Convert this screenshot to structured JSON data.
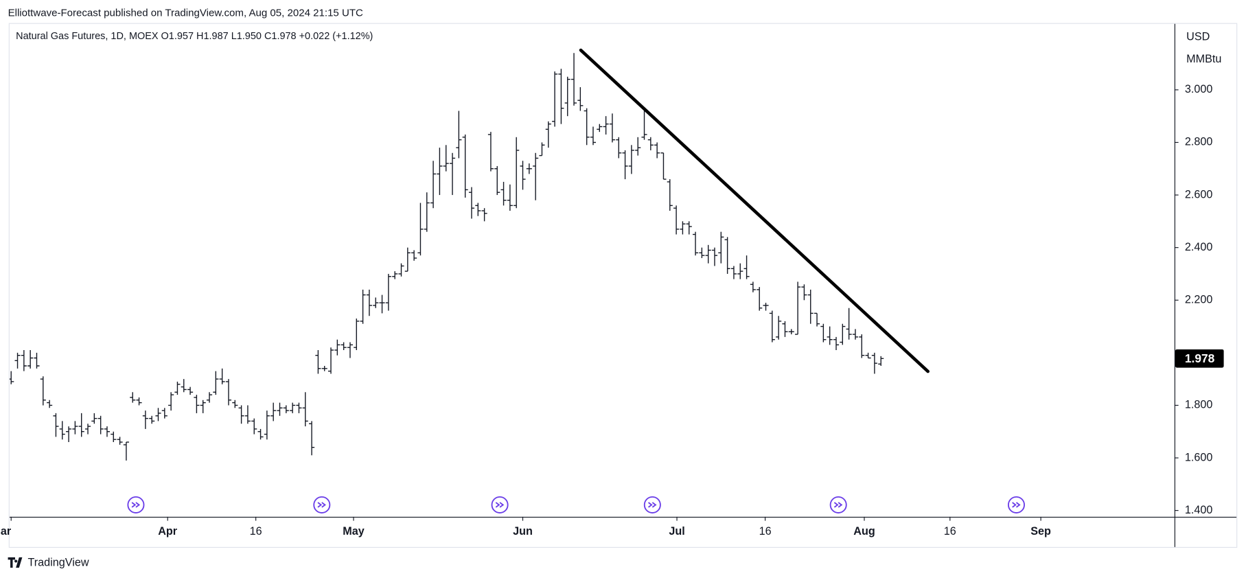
{
  "chart_data": {
    "type": "ohlc",
    "publisher": "Elliottwave-Forecast published on TradingView.com, Aug 05, 2024 21:15 UTC",
    "title": "Natural Gas Futures, 1D, MOEX  O1.957  H1.987  L1.950  C1.978  +0.022 (+1.12%)",
    "currency": "USD",
    "unit": "MMBtu",
    "brand": "TradingView",
    "color": "#131722",
    "ylim": [
      1.376,
      3.251
    ],
    "yticks": [
      {
        "value": 3,
        "label": "3.000"
      },
      {
        "value": 2.8,
        "label": "2.800"
      },
      {
        "value": 2.6,
        "label": "2.600"
      },
      {
        "value": 2.4,
        "label": "2.400"
      },
      {
        "value": 2.2,
        "label": "2.200"
      },
      {
        "value": 1.8,
        "label": "1.800"
      },
      {
        "value": 1.6,
        "label": "1.600"
      },
      {
        "value": 1.4,
        "label": "1.400"
      }
    ],
    "xlim": [
      -0.25,
      181.9
    ],
    "xticks": [
      {
        "value": 0,
        "label": "ar"
      },
      {
        "value": 24.47,
        "label": "Apr"
      },
      {
        "value": 38.26,
        "label": "16"
      },
      {
        "value": 53.54,
        "label": "May"
      },
      {
        "value": 80.0,
        "label": "Jun"
      },
      {
        "value": 104.1,
        "label": "Jul"
      },
      {
        "value": 117.9,
        "label": "16"
      },
      {
        "value": 133.4,
        "label": "Aug"
      },
      {
        "value": 146.8,
        "label": "16"
      },
      {
        "value": 161.0,
        "label": "Sep"
      }
    ],
    "ohlc": [
      [
        1.9,
        1.93,
        1.88,
        1.89
      ],
      [
        1.97,
        2.0,
        1.94,
        1.99
      ],
      [
        1.99,
        2.01,
        1.93,
        1.95
      ],
      [
        1.95,
        2.01,
        1.94,
        1.98
      ],
      [
        1.98,
        2.0,
        1.94,
        1.95
      ],
      [
        1.9,
        1.91,
        1.8,
        1.82
      ],
      [
        1.81,
        1.82,
        1.79,
        1.8
      ],
      [
        1.76,
        1.77,
        1.68,
        1.72
      ],
      [
        1.71,
        1.74,
        1.67,
        1.69
      ],
      [
        1.7,
        1.72,
        1.66,
        1.71
      ],
      [
        1.71,
        1.74,
        1.69,
        1.72
      ],
      [
        1.72,
        1.77,
        1.68,
        1.7
      ],
      [
        1.71,
        1.73,
        1.69,
        1.72
      ],
      [
        1.74,
        1.77,
        1.73,
        1.75
      ],
      [
        1.75,
        1.76,
        1.69,
        1.71
      ],
      [
        1.71,
        1.72,
        1.68,
        1.7
      ],
      [
        1.69,
        1.7,
        1.66,
        1.67
      ],
      [
        1.67,
        1.68,
        1.65,
        1.66
      ],
      [
        1.65,
        1.66,
        1.59,
        1.66
      ],
      [
        1.83,
        1.85,
        1.81,
        1.82
      ],
      [
        1.82,
        1.83,
        1.8,
        1.81
      ],
      [
        1.76,
        1.78,
        1.71,
        1.75
      ],
      [
        1.75,
        1.76,
        1.73,
        1.74
      ],
      [
        1.76,
        1.79,
        1.74,
        1.77
      ],
      [
        1.78,
        1.79,
        1.75,
        1.76
      ],
      [
        1.8,
        1.85,
        1.78,
        1.84
      ],
      [
        1.85,
        1.89,
        1.84,
        1.88
      ],
      [
        1.87,
        1.9,
        1.85,
        1.86
      ],
      [
        1.86,
        1.87,
        1.84,
        1.85
      ],
      [
        1.83,
        1.84,
        1.77,
        1.8
      ],
      [
        1.8,
        1.82,
        1.77,
        1.81
      ],
      [
        1.82,
        1.85,
        1.81,
        1.84
      ],
      [
        1.85,
        1.93,
        1.84,
        1.9
      ],
      [
        1.9,
        1.94,
        1.88,
        1.89
      ],
      [
        1.89,
        1.9,
        1.8,
        1.82
      ],
      [
        1.81,
        1.82,
        1.79,
        1.8
      ],
      [
        1.79,
        1.8,
        1.73,
        1.76
      ],
      [
        1.76,
        1.8,
        1.73,
        1.74
      ],
      [
        1.74,
        1.75,
        1.69,
        1.71
      ],
      [
        1.7,
        1.71,
        1.67,
        1.68
      ],
      [
        1.69,
        1.78,
        1.67,
        1.76
      ],
      [
        1.76,
        1.81,
        1.74,
        1.78
      ],
      [
        1.78,
        1.81,
        1.76,
        1.79
      ],
      [
        1.79,
        1.8,
        1.77,
        1.78
      ],
      [
        1.78,
        1.81,
        1.77,
        1.8
      ],
      [
        1.8,
        1.81,
        1.77,
        1.79
      ],
      [
        1.79,
        1.85,
        1.72,
        1.74
      ],
      [
        1.73,
        1.74,
        1.61,
        1.64
      ],
      [
        1.99,
        2.01,
        1.92,
        1.94
      ],
      [
        1.94,
        1.95,
        1.93,
        1.94
      ],
      [
        1.93,
        2.02,
        1.92,
        2.01
      ],
      [
        2.01,
        2.05,
        1.99,
        2.03
      ],
      [
        2.03,
        2.04,
        2.01,
        2.02
      ],
      [
        2.02,
        2.04,
        1.98,
        2.03
      ],
      [
        2.02,
        2.13,
        2.01,
        2.12
      ],
      [
        2.12,
        2.24,
        2.11,
        2.22
      ],
      [
        2.22,
        2.24,
        2.14,
        2.18
      ],
      [
        2.18,
        2.21,
        2.17,
        2.19
      ],
      [
        2.19,
        2.22,
        2.15,
        2.19
      ],
      [
        2.19,
        2.3,
        2.16,
        2.29
      ],
      [
        2.29,
        2.31,
        2.28,
        2.3
      ],
      [
        2.3,
        2.34,
        2.29,
        2.33
      ],
      [
        2.31,
        2.4,
        2.31,
        2.38
      ],
      [
        2.38,
        2.39,
        2.35,
        2.36
      ],
      [
        2.38,
        2.57,
        2.37,
        2.47
      ],
      [
        2.47,
        2.61,
        2.46,
        2.57
      ],
      [
        2.57,
        2.73,
        2.55,
        2.68
      ],
      [
        2.68,
        2.78,
        2.6,
        2.71
      ],
      [
        2.71,
        2.79,
        2.69,
        2.72
      ],
      [
        2.72,
        2.76,
        2.6,
        2.74
      ],
      [
        2.78,
        2.92,
        2.74,
        2.81
      ],
      [
        2.82,
        2.83,
        2.59,
        2.62
      ],
      [
        2.61,
        2.63,
        2.51,
        2.55
      ],
      [
        2.56,
        2.57,
        2.52,
        2.54
      ],
      [
        2.54,
        2.55,
        2.5,
        2.53
      ],
      [
        2.83,
        2.84,
        2.69,
        2.7
      ],
      [
        2.7,
        2.71,
        2.6,
        2.61
      ],
      [
        2.62,
        2.65,
        2.56,
        2.58
      ],
      [
        2.58,
        2.64,
        2.54,
        2.56
      ],
      [
        2.56,
        2.82,
        2.55,
        2.77
      ],
      [
        2.71,
        2.73,
        2.62,
        2.66
      ],
      [
        2.7,
        2.72,
        2.68,
        2.7
      ],
      [
        2.71,
        2.76,
        2.58,
        2.74
      ],
      [
        2.75,
        2.8,
        2.75,
        2.79
      ],
      [
        2.85,
        2.88,
        2.78,
        2.87
      ],
      [
        2.88,
        3.07,
        2.86,
        3.06
      ],
      [
        3.06,
        3.08,
        2.87,
        2.93
      ],
      [
        2.95,
        3.05,
        2.9,
        3.04
      ],
      [
        3.04,
        3.14,
        2.94,
        2.95
      ],
      [
        2.96,
        3.01,
        2.92,
        2.94
      ],
      [
        2.92,
        2.93,
        2.79,
        2.82
      ],
      [
        2.82,
        2.86,
        2.79,
        2.8
      ],
      [
        2.85,
        2.87,
        2.84,
        2.86
      ],
      [
        2.86,
        2.9,
        2.83,
        2.87
      ],
      [
        2.87,
        2.91,
        2.8,
        2.81
      ],
      [
        2.81,
        2.82,
        2.74,
        2.76
      ],
      [
        2.76,
        2.77,
        2.66,
        2.71
      ],
      [
        2.71,
        2.79,
        2.68,
        2.77
      ],
      [
        2.77,
        2.82,
        2.75,
        2.78
      ],
      [
        2.82,
        2.93,
        2.81,
        2.83
      ],
      [
        2.81,
        2.82,
        2.77,
        2.79
      ],
      [
        2.79,
        2.8,
        2.74,
        2.76
      ],
      [
        2.76,
        2.76,
        2.66,
        2.66
      ],
      [
        2.65,
        2.66,
        2.54,
        2.56
      ],
      [
        2.55,
        2.56,
        2.45,
        2.47
      ],
      [
        2.47,
        2.5,
        2.45,
        2.49
      ],
      [
        2.49,
        2.5,
        2.45,
        2.48
      ],
      [
        2.45,
        2.46,
        2.37,
        2.38
      ],
      [
        2.38,
        2.4,
        2.36,
        2.37
      ],
      [
        2.37,
        2.41,
        2.34,
        2.39
      ],
      [
        2.39,
        2.4,
        2.33,
        2.37
      ],
      [
        2.38,
        2.46,
        2.34,
        2.44
      ],
      [
        2.43,
        2.44,
        2.3,
        2.32
      ],
      [
        2.32,
        2.33,
        2.28,
        2.3
      ],
      [
        2.3,
        2.34,
        2.28,
        2.31
      ],
      [
        2.32,
        2.37,
        2.28,
        2.29
      ],
      [
        2.26,
        2.27,
        2.23,
        2.24
      ],
      [
        2.24,
        2.25,
        2.16,
        2.17
      ],
      [
        2.18,
        2.19,
        2.16,
        2.18
      ],
      [
        2.15,
        2.16,
        2.04,
        2.05
      ],
      [
        2.06,
        2.14,
        2.05,
        2.12
      ],
      [
        2.11,
        2.12,
        2.06,
        2.08
      ],
      [
        2.08,
        2.09,
        2.07,
        2.08
      ],
      [
        2.07,
        2.27,
        2.07,
        2.25
      ],
      [
        2.25,
        2.26,
        2.2,
        2.22
      ],
      [
        2.22,
        2.24,
        2.11,
        2.15
      ],
      [
        2.15,
        2.15,
        2.1,
        2.11
      ],
      [
        2.1,
        2.11,
        2.04,
        2.05
      ],
      [
        2.06,
        2.1,
        2.03,
        2.05
      ],
      [
        2.05,
        2.06,
        2.01,
        2.03
      ],
      [
        2.04,
        2.11,
        2.03,
        2.1
      ],
      [
        2.09,
        2.17,
        2.05,
        2.07
      ],
      [
        2.07,
        2.09,
        2.05,
        2.06
      ],
      [
        2.06,
        2.07,
        1.98,
        1.99
      ],
      [
        1.99,
        2.0,
        1.98,
        1.98
      ],
      [
        1.99,
        2.0,
        1.92,
        1.96
      ],
      [
        1.957,
        1.987,
        1.95,
        1.978
      ]
    ],
    "trendline": {
      "x": [
        89.07,
        143.35
      ],
      "y": [
        3.151,
        1.929
      ]
    }
  }
}
